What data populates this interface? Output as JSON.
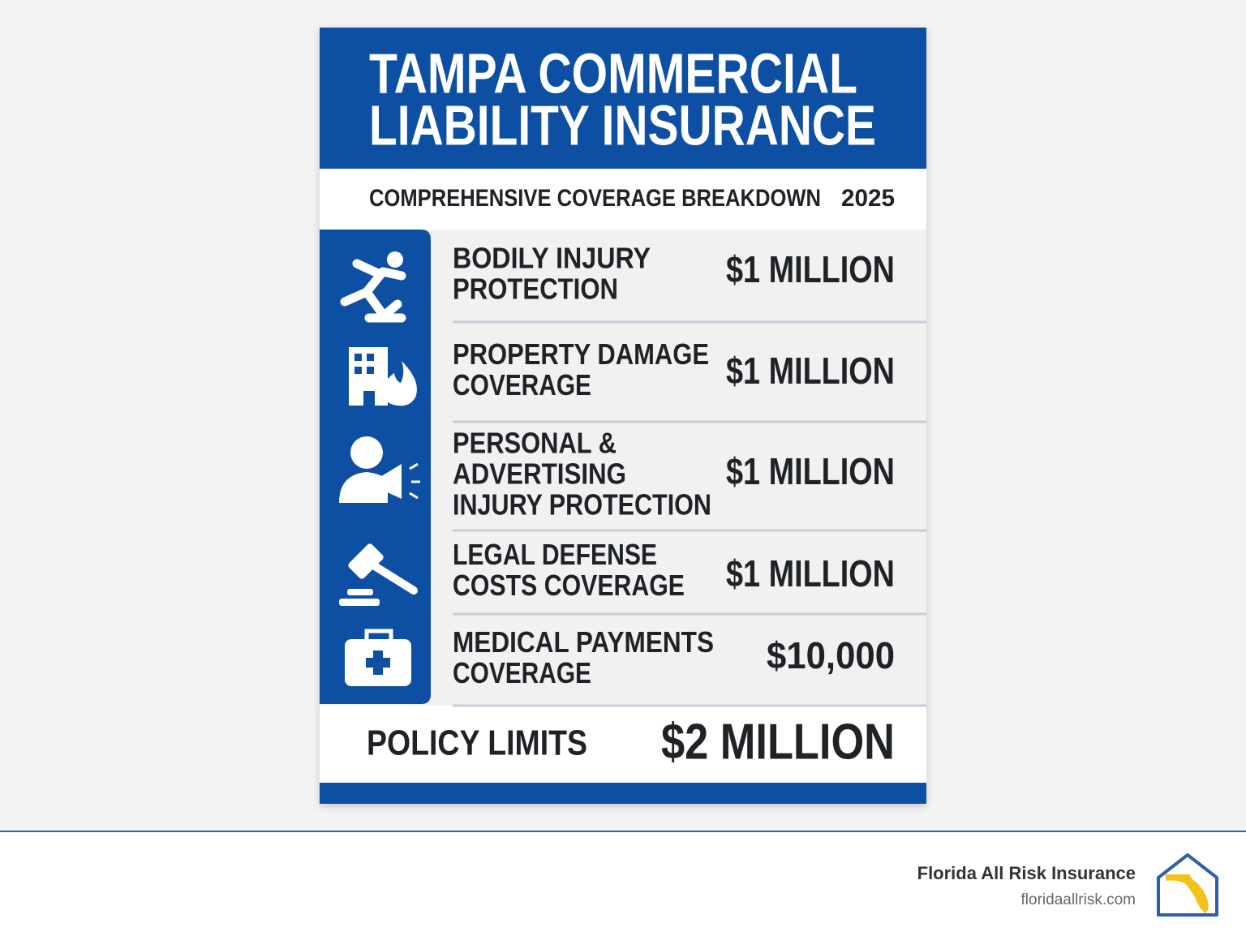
{
  "poster": {
    "title": [
      "TAMPA COMMERCIAL",
      "LIABILITY INSURANCE"
    ],
    "subtitle": "COMPREHENSIVE COVERAGE BREAKDOWN",
    "year": "2025",
    "rows": [
      {
        "label": [
          "BODILY INJURY",
          "PROTECTION"
        ],
        "value": "$1 MILLION"
      },
      {
        "label": [
          "PROPERTY DAMAGE",
          "COVERAGE"
        ],
        "value": "$1 MILLION"
      },
      {
        "label": [
          "PERSONAL &",
          "ADVERTISING",
          "INJURY PROTECTION"
        ],
        "value": "$1 MILLION"
      },
      {
        "label": [
          "LEGAL DEFENSE",
          "COSTS COVERAGE"
        ],
        "value": "$1 MILLION"
      },
      {
        "label": [
          "MEDICAL PAYMENTS",
          "COVERAGE"
        ],
        "value": "$10,000"
      }
    ],
    "total_label": "POLICY LIMITS",
    "total_value": "$2 MILLION"
  },
  "footer": {
    "brand": "Florida All Risk Insurance",
    "url": "floridaallrisk.com"
  }
}
